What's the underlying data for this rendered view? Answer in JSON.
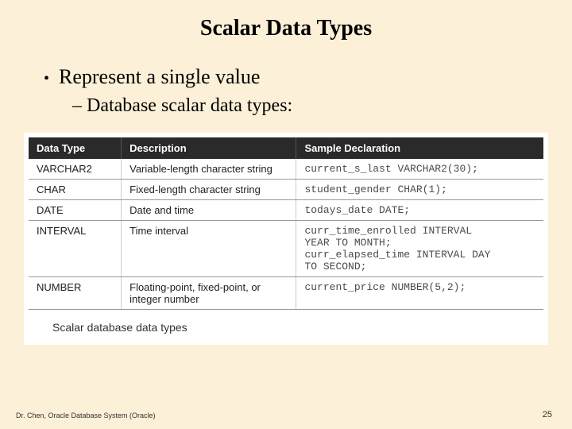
{
  "title": "Scalar Data Types",
  "bullets": {
    "main": "Represent a single value",
    "sub": "– Database scalar data types:"
  },
  "table": {
    "headers": [
      "Data Type",
      "Description",
      "Sample Declaration"
    ],
    "rows": [
      [
        "VARCHAR2",
        "Variable-length character string",
        "current_s_last VARCHAR2(30);"
      ],
      [
        "CHAR",
        "Fixed-length character string",
        "student_gender CHAR(1);"
      ],
      [
        "DATE",
        "Date and time",
        "todays_date DATE;"
      ],
      [
        "INTERVAL",
        "Time interval",
        "curr_time_enrolled INTERVAL\nYEAR TO MONTH;\ncurr_elapsed_time INTERVAL DAY\nTO SECOND;"
      ],
      [
        "NUMBER",
        "Floating-point, fixed-point, or integer number",
        "current_price NUMBER(5,2);"
      ]
    ],
    "caption": "Scalar database data types"
  },
  "footer": {
    "left": "Dr. Chen, Oracle Database System (Oracle)",
    "page": "25"
  },
  "colors": {
    "background": "#fcf0d8",
    "header_bg": "#2a2a2a",
    "header_fg": "#ffffff",
    "text": "#000000",
    "border": "#999999"
  }
}
